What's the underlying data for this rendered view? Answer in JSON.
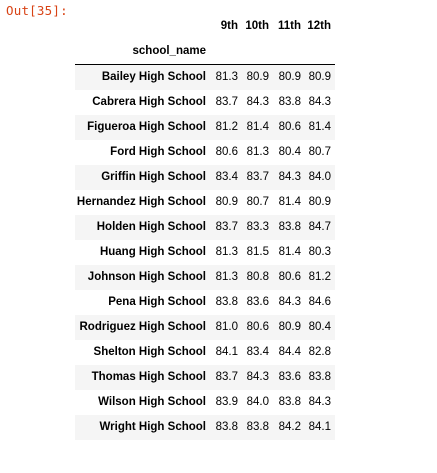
{
  "cell": {
    "out_prompt": "Out[35]:"
  },
  "table": {
    "columns": [
      "9th",
      "10th",
      "11th",
      "12th"
    ],
    "index_name": "school_name",
    "rows": [
      {
        "school": "Bailey High School",
        "values": [
          "81.3",
          "80.9",
          "80.9",
          "80.9"
        ]
      },
      {
        "school": "Cabrera High School",
        "values": [
          "83.7",
          "84.3",
          "83.8",
          "84.3"
        ]
      },
      {
        "school": "Figueroa High School",
        "values": [
          "81.2",
          "81.4",
          "80.6",
          "81.4"
        ]
      },
      {
        "school": "Ford High School",
        "values": [
          "80.6",
          "81.3",
          "80.4",
          "80.7"
        ]
      },
      {
        "school": "Griffin High School",
        "values": [
          "83.4",
          "83.7",
          "84.3",
          "84.0"
        ]
      },
      {
        "school": "Hernandez High School",
        "values": [
          "80.9",
          "80.7",
          "81.4",
          "80.9"
        ]
      },
      {
        "school": "Holden High School",
        "values": [
          "83.7",
          "83.3",
          "83.8",
          "84.7"
        ]
      },
      {
        "school": "Huang High School",
        "values": [
          "81.3",
          "81.5",
          "81.4",
          "80.3"
        ]
      },
      {
        "school": "Johnson High School",
        "values": [
          "81.3",
          "80.8",
          "80.6",
          "81.2"
        ]
      },
      {
        "school": "Pena High School",
        "values": [
          "83.8",
          "83.6",
          "84.3",
          "84.6"
        ]
      },
      {
        "school": "Rodriguez High School",
        "values": [
          "81.0",
          "80.6",
          "80.9",
          "80.4"
        ]
      },
      {
        "school": "Shelton High School",
        "values": [
          "84.1",
          "83.4",
          "84.4",
          "82.8"
        ]
      },
      {
        "school": "Thomas High School",
        "values": [
          "83.7",
          "84.3",
          "83.6",
          "83.8"
        ]
      },
      {
        "school": "Wilson High School",
        "values": [
          "83.9",
          "84.0",
          "83.8",
          "84.3"
        ]
      },
      {
        "school": "Wright High School",
        "values": [
          "83.8",
          "83.8",
          "84.2",
          "84.1"
        ]
      }
    ]
  },
  "colors": {
    "prompt": "#d84315",
    "stripe": "#f5f5f5"
  }
}
